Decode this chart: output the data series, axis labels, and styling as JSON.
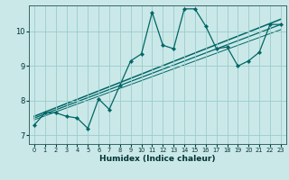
{
  "xlabel": "Humidex (Indice chaleur)",
  "bg_color": "#cbe8e8",
  "line_color": "#006666",
  "grid_color": "#99cccc",
  "xlim": [
    -0.5,
    23.5
  ],
  "ylim": [
    6.75,
    10.75
  ],
  "xticks": [
    0,
    1,
    2,
    3,
    4,
    5,
    6,
    7,
    8,
    9,
    10,
    11,
    12,
    13,
    14,
    15,
    16,
    17,
    18,
    19,
    20,
    21,
    22,
    23
  ],
  "yticks": [
    7,
    8,
    9,
    10
  ],
  "line1_x": [
    0,
    1,
    2,
    3,
    4,
    5,
    6,
    7,
    8,
    9,
    10,
    11,
    12,
    13,
    14,
    15,
    16,
    17,
    18,
    19,
    20,
    21,
    22,
    23
  ],
  "line1_y": [
    7.3,
    7.65,
    7.65,
    7.55,
    7.5,
    7.2,
    8.05,
    7.75,
    8.45,
    9.15,
    9.35,
    10.55,
    9.6,
    9.5,
    10.65,
    10.65,
    10.15,
    9.5,
    9.55,
    9.0,
    9.15,
    9.4,
    10.2,
    10.2
  ],
  "trend1_x": [
    0,
    23
  ],
  "trend1_y": [
    7.55,
    10.35
  ],
  "trend2_x": [
    0,
    23
  ],
  "trend2_y": [
    7.5,
    10.2
  ],
  "trend3_x": [
    0,
    23
  ],
  "trend3_y": [
    7.45,
    10.05
  ]
}
